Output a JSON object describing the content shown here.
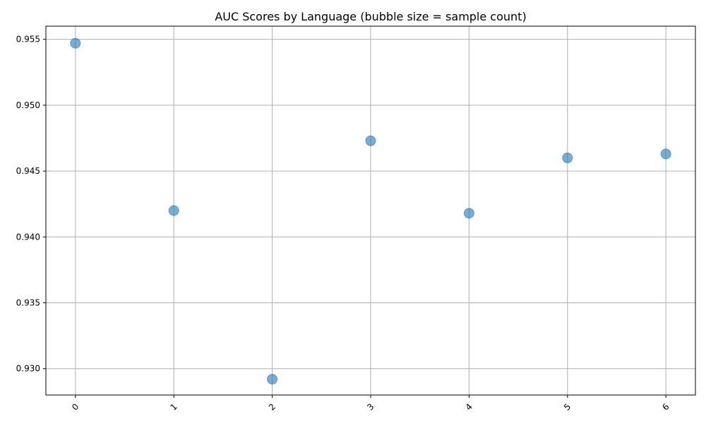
{
  "chart_data": {
    "type": "scatter",
    "title": "AUC Scores by Language (bubble size = sample count)",
    "xlabel": "",
    "ylabel": "",
    "x": [
      0,
      1,
      2,
      3,
      4,
      5,
      6
    ],
    "series": [
      {
        "values": [
          0.9547,
          0.942,
          0.9292,
          0.9473,
          0.9418,
          0.946,
          0.9463
        ]
      }
    ],
    "xlim": [
      -0.3,
      6.3
    ],
    "ylim": [
      0.928,
      0.956
    ],
    "x_ticks": [
      "0",
      "1",
      "2",
      "3",
      "4",
      "5",
      "6"
    ],
    "x_tick_rotation_deg": 45,
    "y_ticks": [
      0.93,
      0.935,
      0.94,
      0.945,
      0.95,
      0.955
    ],
    "y_tick_labels": [
      "0.930",
      "0.935",
      "0.940",
      "0.945",
      "0.950",
      "0.955"
    ],
    "grid": true,
    "legend": "none",
    "marker_color": "#1f77b4",
    "marker_alpha": 0.6,
    "grid_color": "#b0b0b0"
  }
}
